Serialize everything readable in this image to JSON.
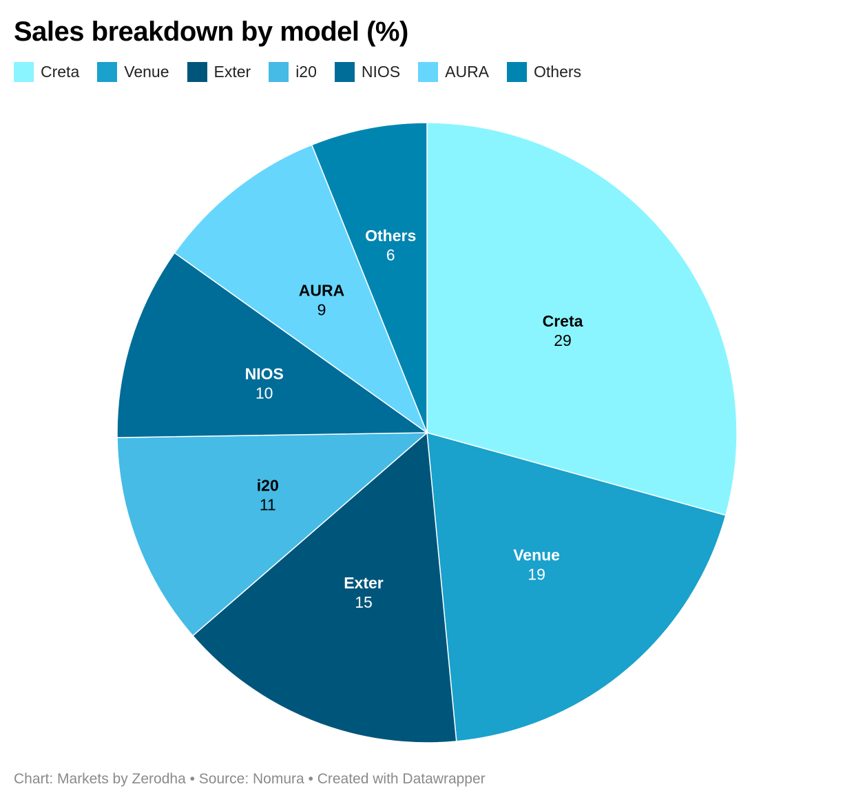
{
  "title": "Sales breakdown by model (%)",
  "footer": "Chart: Markets by Zerodha • Source: Nomura • Created with Datawrapper",
  "chart_data": {
    "type": "pie",
    "title": "Sales breakdown by model (%)",
    "legend_position": "top-left",
    "slices": [
      {
        "label": "Creta",
        "value": 29,
        "color": "#8af5ff",
        "label_color": "#000000"
      },
      {
        "label": "Venue",
        "value": 19,
        "color": "#1aa1cc",
        "label_color": "#ffffff"
      },
      {
        "label": "Exter",
        "value": 15,
        "color": "#00557b",
        "label_color": "#ffffff"
      },
      {
        "label": "i20",
        "value": 11,
        "color": "#45bbe6",
        "label_color": "#000000"
      },
      {
        "label": "NIOS",
        "value": 10,
        "color": "#006c98",
        "label_color": "#ffffff"
      },
      {
        "label": "AURA",
        "value": 9,
        "color": "#66d6fd",
        "label_color": "#000000"
      },
      {
        "label": "Others",
        "value": 6,
        "color": "#0085b1",
        "label_color": "#ffffff"
      }
    ]
  }
}
